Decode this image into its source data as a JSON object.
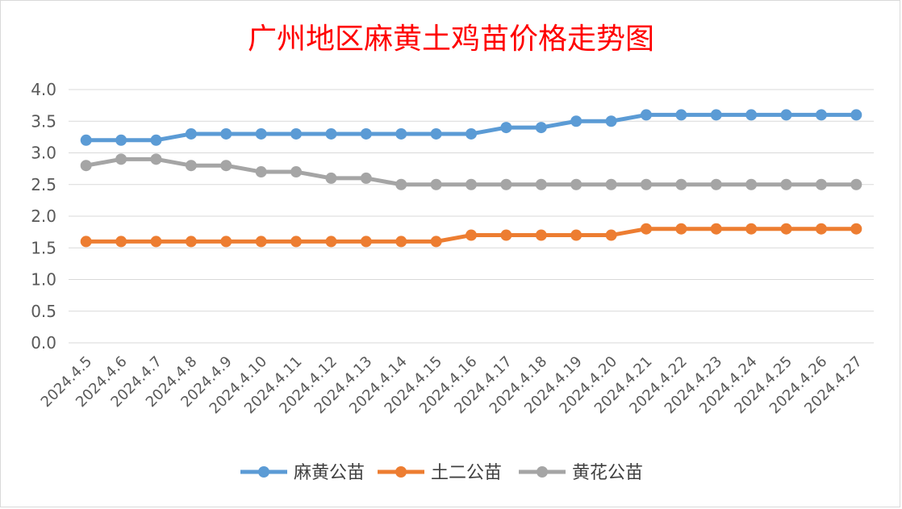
{
  "chart_data": {
    "type": "line",
    "title": "广州地区麻黄土鸡苗价格走势图",
    "xlabel": "",
    "ylabel": "",
    "ylim": [
      0,
      4.0
    ],
    "y_ticks": [
      "0.0",
      "0.5",
      "1.0",
      "1.5",
      "2.0",
      "2.5",
      "3.0",
      "3.5",
      "4.0"
    ],
    "grid": true,
    "legend_position": "bottom",
    "categories": [
      "2024.4.5",
      "2024.4.6",
      "2024.4.7",
      "2024.4.8",
      "2024.4.9",
      "2024.4.10",
      "2024.4.11",
      "2024.4.12",
      "2024.4.13",
      "2024.4.14",
      "2024.4.15",
      "2024.4.16",
      "2024.4.17",
      "2024.4.18",
      "2024.4.19",
      "2024.4.20",
      "2024.4.21",
      "2024.4.22",
      "2024.4.23",
      "2024.4.24",
      "2024.4.25",
      "2024.4.26",
      "2024.4.27"
    ],
    "series": [
      {
        "name": "麻黄公苗",
        "color": "#5b9bd5",
        "values": [
          3.2,
          3.2,
          3.2,
          3.3,
          3.3,
          3.3,
          3.3,
          3.3,
          3.3,
          3.3,
          3.3,
          3.3,
          3.4,
          3.4,
          3.5,
          3.5,
          3.6,
          3.6,
          3.6,
          3.6,
          3.6,
          3.6,
          3.6
        ]
      },
      {
        "name": "土二公苗",
        "color": "#ed7d31",
        "values": [
          1.6,
          1.6,
          1.6,
          1.6,
          1.6,
          1.6,
          1.6,
          1.6,
          1.6,
          1.6,
          1.6,
          1.7,
          1.7,
          1.7,
          1.7,
          1.7,
          1.8,
          1.8,
          1.8,
          1.8,
          1.8,
          1.8,
          1.8
        ]
      },
      {
        "name": "黄花公苗",
        "color": "#a5a5a5",
        "values": [
          2.8,
          2.9,
          2.9,
          2.8,
          2.8,
          2.7,
          2.7,
          2.6,
          2.6,
          2.5,
          2.5,
          2.5,
          2.5,
          2.5,
          2.5,
          2.5,
          2.5,
          2.5,
          2.5,
          2.5,
          2.5,
          2.5,
          2.5
        ]
      }
    ]
  }
}
